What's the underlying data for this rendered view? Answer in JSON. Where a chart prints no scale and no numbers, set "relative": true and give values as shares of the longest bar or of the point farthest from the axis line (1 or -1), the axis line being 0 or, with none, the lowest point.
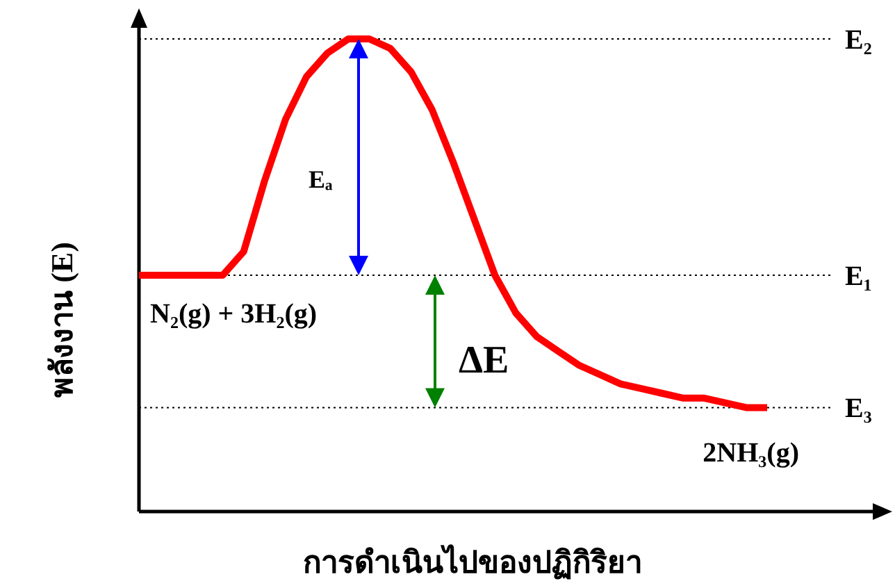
{
  "chart_data": {
    "type": "line",
    "relative": true,
    "ylabel": "พลังงาน (E)",
    "xlabel": "การดำเนินไปของปฏิกิริยา",
    "categories": [
      null,
      null,
      null,
      null,
      null,
      null,
      null,
      null,
      null,
      null,
      null,
      null,
      null,
      null,
      null,
      null,
      null,
      null,
      null,
      null,
      null,
      null,
      null,
      null,
      null,
      null,
      null,
      null,
      null,
      null,
      null
    ],
    "series": [
      {
        "color": "#ff0000",
        "values": [
          0.5,
          0.5,
          0.5,
          0.5,
          0.5,
          0.55,
          0.7,
          0.83,
          0.92,
          0.97,
          1.0,
          1.0,
          0.98,
          0.93,
          0.85,
          0.74,
          0.62,
          0.5,
          0.42,
          0.37,
          0.34,
          0.31,
          0.29,
          0.27,
          0.26,
          0.25,
          0.24,
          0.24,
          0.23,
          0.22,
          0.22
        ]
      }
    ],
    "ref_lines": [
      {
        "axis": "y",
        "value": 1.0,
        "label": "E₂",
        "color": "#000000",
        "line_style": "dotted"
      },
      {
        "axis": "y",
        "value": 0.5,
        "label": "E₁",
        "color": "#000000",
        "line_style": "dotted"
      },
      {
        "axis": "y",
        "value": 0.22,
        "label": "E₃",
        "color": "#000000",
        "line_style": "dotted"
      }
    ],
    "annotations": [
      "Eₐ",
      "N₂(g) + 3H₂(g)",
      "ΔE",
      "2NH₃(g)"
    ],
    "line_style": "solid"
  }
}
